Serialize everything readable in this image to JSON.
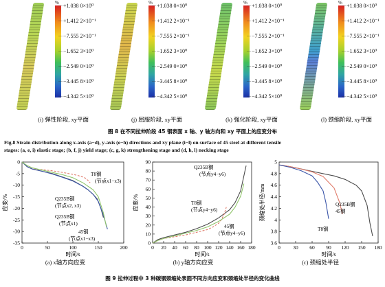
{
  "figure8": {
    "panels": [
      {
        "id": "i",
        "label": "(i) 弹性阶段, xy平面",
        "cls": "rod-i"
      },
      {
        "id": "j",
        "label": "(j) 屈服阶段, xy平面",
        "cls": "rod-j"
      },
      {
        "id": "k",
        "label": "(k) 强化阶段, xy平面",
        "cls": "rod-k"
      },
      {
        "id": "l",
        "label": "(l) 颈缩阶段, xy平面",
        "cls": "rod-l"
      }
    ],
    "colorbar_unit": "%",
    "colorbar_ticks": [
      "+1.038 0×10⁰",
      "+1.412 2×10⁻¹",
      "−7.555 2×10⁻¹",
      "−1.652 3×10⁰",
      "−2.549 0×10⁰",
      "−3.445 8×10⁰",
      "−4.342 5×10⁰"
    ],
    "caption_zh": "图 8    在不同拉伸阶段 45 钢表面 x 轴、y 轴方向和 xy 平面上的应变分布",
    "caption_en_1": "Fig.8    Strain distribution along x-axis (a−d), y-axis (e−h) directions and xy plane (i−l) on surface of 45 steel at different tensile",
    "caption_en_2": "stages: (a, e, i) elastic stage; (b, f, j) yield stage; (c, g, k) strengthening stage and (d, h, l) necking stage"
  },
  "figure9": {
    "caption": "图 9    拉伸过程中 3 种碳钢颈缩处表面不同方向应变和颈缩处半径的变化曲线",
    "colors": {
      "t8": "#e07b6a",
      "q235": "#4b4b4b",
      "s45": "#8fc46a",
      "q235_blue": "#3a55a8"
    }
  },
  "chart_data": [
    {
      "type": "line",
      "title": "(a) x轴方向应变",
      "xlabel": "时间/s",
      "ylabel": "应变/%",
      "xlim": [
        0,
        200
      ],
      "ylim": [
        -35,
        0
      ],
      "xticks": [
        0,
        50,
        100,
        150,
        200
      ],
      "yticks": [
        0,
        -5,
        -10,
        -15,
        -20,
        -25,
        -30,
        -35
      ],
      "annotations": [
        "T8钢",
        "(节点x1−x3)",
        "Q235B钢",
        "(节点x2, x3)",
        "Q235B钢",
        "(节点x1)",
        "45钢",
        "(节点x1−x3)"
      ],
      "series": [
        {
          "name": "T8钢 (节点x1−x3)",
          "color": "#e07b6a",
          "dash": true,
          "x": [
            0,
            10,
            20,
            40,
            60,
            80,
            100,
            110,
            120,
            125,
            130,
            134
          ],
          "y": [
            0,
            -2,
            -3,
            -3.3,
            -3.8,
            -4.5,
            -5.3,
            -5.8,
            -6.5,
            -7,
            -8,
            -9
          ]
        },
        {
          "name": "Q235B钢 (节点x2, x3)",
          "color": "#4b4b4b",
          "dash": false,
          "x": [
            0,
            10,
            20,
            40,
            60,
            80,
            100,
            120,
            130,
            140,
            148,
            155,
            160
          ],
          "y": [
            0,
            -2,
            -3,
            -4,
            -5,
            -6.5,
            -8,
            -10.5,
            -12,
            -14,
            -16,
            -20,
            -24
          ]
        },
        {
          "name": "Q235B钢 (节点x1)",
          "color": "#3a55a8",
          "dash": false,
          "x": [
            0,
            10,
            20,
            40,
            60,
            80,
            100,
            120,
            130,
            140,
            150,
            160,
            168
          ],
          "y": [
            0,
            -2,
            -3,
            -4,
            -5.2,
            -6.6,
            -8.2,
            -10.5,
            -12,
            -14,
            -17,
            -23,
            -29
          ]
        },
        {
          "name": "45钢 (节点x1−x3)",
          "color": "#8fc46a",
          "dash": false,
          "x": [
            0,
            10,
            20,
            40,
            60,
            80,
            100,
            120,
            140,
            150,
            160,
            166
          ],
          "y": [
            0,
            -1.5,
            -2.5,
            -3.5,
            -4.5,
            -5.5,
            -6.8,
            -9,
            -12,
            -15,
            -22,
            -28
          ]
        }
      ]
    },
    {
      "type": "line",
      "title": "(b) y轴方向应变",
      "xlabel": "时间/s",
      "ylabel": "应变/%",
      "xlim": [
        0,
        180
      ],
      "ylim": [
        0,
        90
      ],
      "xticks": [
        0,
        20,
        40,
        60,
        80,
        100,
        120,
        140,
        160,
        180
      ],
      "yticks": [
        0,
        10,
        20,
        30,
        40,
        50,
        60,
        70,
        80,
        90
      ],
      "annotations": [
        "Q235B钢",
        "(节点y4−y6)",
        "T8钢",
        "(节点y4−y6)",
        "45钢",
        "(节点y4−y6)"
      ],
      "series": [
        {
          "name": "Q235B钢 (节点y4−y6)",
          "color": "#4b4b4b",
          "dash": false,
          "x": [
            0,
            10,
            20,
            40,
            60,
            80,
            100,
            120,
            140,
            150,
            160,
            165,
            170
          ],
          "y": [
            0,
            4,
            6,
            9,
            12,
            16,
            21,
            28,
            37,
            45,
            58,
            72,
            86
          ]
        },
        {
          "name": "T8钢 (节点y4−y6)",
          "color": "#e07b6a",
          "dash": true,
          "x": [
            0,
            10,
            20,
            40,
            60,
            80,
            100,
            110,
            120,
            125,
            130,
            134
          ],
          "y": [
            0,
            3,
            5,
            7,
            9,
            12,
            15,
            18,
            22,
            26,
            32,
            40
          ]
        },
        {
          "name": "45钢 (节点y4−y6)",
          "color": "#8fc46a",
          "dash": false,
          "x": [
            0,
            10,
            20,
            40,
            60,
            80,
            100,
            120,
            140,
            150,
            160,
            166
          ],
          "y": [
            0,
            3,
            5,
            8,
            11,
            14,
            18,
            24,
            32,
            40,
            52,
            66
          ]
        }
      ]
    },
    {
      "type": "line",
      "title": "(c) 颈缩处半径",
      "xlabel": "时间/s",
      "ylabel": "颈缩处半径/mm",
      "xlim": [
        0,
        180
      ],
      "ylim": [
        3.6,
        5.0
      ],
      "xticks": [
        0,
        30,
        60,
        90,
        120,
        150,
        180
      ],
      "yticks": [
        3.6,
        3.8,
        4.0,
        4.2,
        4.4,
        4.6,
        4.8,
        5.0
      ],
      "annotations": [
        "Q235B钢",
        "45钢",
        "T8钢"
      ],
      "series": [
        {
          "name": "Q235B钢",
          "color": "#4b4b4b",
          "dash": false,
          "x": [
            0,
            20,
            40,
            60,
            80,
            100,
            120,
            140,
            150,
            160,
            165,
            170
          ],
          "y": [
            4.95,
            4.92,
            4.88,
            4.84,
            4.8,
            4.76,
            4.7,
            4.6,
            4.5,
            4.25,
            3.95,
            3.72
          ]
        },
        {
          "name": "45钢",
          "color": "#e07b6a",
          "dash": false,
          "x": [
            0,
            20,
            40,
            60,
            80,
            100,
            110,
            115
          ],
          "y": [
            4.95,
            4.92,
            4.88,
            4.83,
            4.75,
            4.55,
            4.3,
            4.1
          ]
        },
        {
          "name": "T8钢",
          "color": "#3a55a8",
          "dash": false,
          "x": [
            0,
            20,
            40,
            60,
            70,
            80,
            85,
            90
          ],
          "y": [
            4.95,
            4.91,
            4.85,
            4.76,
            4.65,
            4.5,
            4.3,
            4.02
          ]
        }
      ]
    }
  ]
}
